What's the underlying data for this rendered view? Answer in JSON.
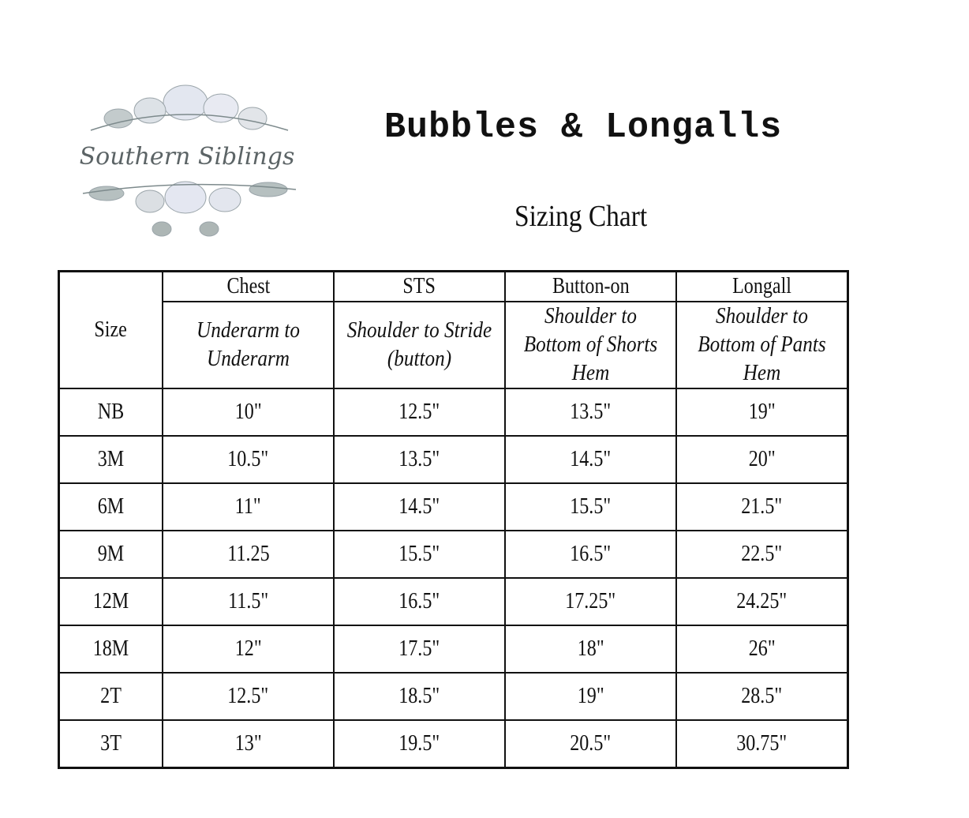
{
  "logo": {
    "text": "Southern Siblings"
  },
  "title": "Bubbles & Longalls",
  "subtitle": "Sizing Chart",
  "table": {
    "size_header": "Size",
    "columns": [
      {
        "label": "Chest",
        "description": "Underarm to Underarm"
      },
      {
        "label": "STS",
        "description": "Shoulder to Stride (button)"
      },
      {
        "label": "Button-on",
        "description": "Shoulder to Bottom of Shorts Hem"
      },
      {
        "label": "Longall",
        "description": "Shoulder to Bottom of Pants Hem"
      }
    ],
    "rows": [
      [
        "NB",
        "10\"",
        "12.5\"",
        "13.5\"",
        "19\""
      ],
      [
        "3M",
        "10.5\"",
        "13.5\"",
        "14.5\"",
        "20\""
      ],
      [
        "6M",
        "11\"",
        "14.5\"",
        "15.5\"",
        "21.5\""
      ],
      [
        "9M",
        "11.25",
        "15.5\"",
        "16.5\"",
        "22.5\""
      ],
      [
        "12M",
        "11.5\"",
        "16.5\"",
        "17.25\"",
        "24.25\""
      ],
      [
        "18M",
        "12\"",
        "17.5\"",
        "18\"",
        "26\""
      ],
      [
        "2T",
        "12.5\"",
        "18.5\"",
        "19\"",
        "28.5\""
      ],
      [
        "3T",
        "13\"",
        "19.5\"",
        "20.5\"",
        "30.75\""
      ]
    ]
  }
}
